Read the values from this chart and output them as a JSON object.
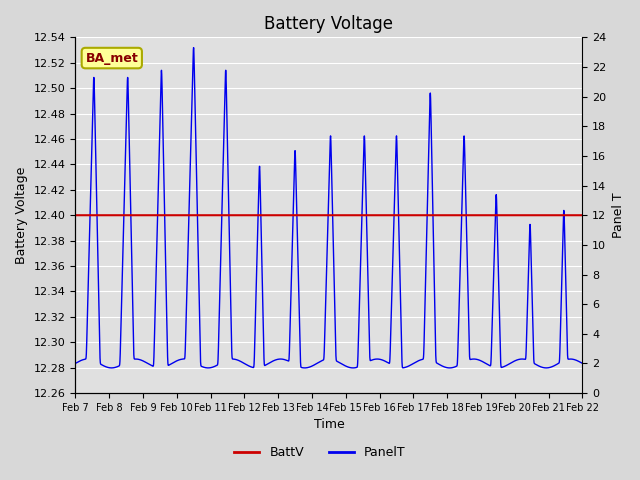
{
  "title": "Battery Voltage",
  "xlabel": "Time",
  "ylabel_left": "Battery Voltage",
  "ylabel_right": "Panel T",
  "ylim_left": [
    12.26,
    12.54
  ],
  "ylim_right": [
    0,
    24
  ],
  "batt_v_value": 12.4,
  "fig_bg_color": "#d8d8d8",
  "plot_bg_color": "#e0e0e0",
  "xtick_labels": [
    "Feb 7",
    "Feb 8",
    "Feb 9",
    "Feb 10",
    "Feb 11",
    "Feb 12",
    "Feb 13",
    "Feb 14",
    "Feb 15",
    "Feb 16",
    "Feb 17",
    "Feb 18",
    "Feb 19",
    "Feb 20",
    "Feb 21",
    "Feb 22"
  ],
  "legend_label_batt": "BattV",
  "legend_label_panel": "PanelT",
  "annotation_text": "BA_met",
  "annotation_bg": "#ffff99",
  "annotation_border": "#aaaa00",
  "line_color_batt": "#cc0000",
  "line_color_panel": "#0000ee",
  "gridline_color": "#ffffff",
  "title_fontsize": 12,
  "axis_fontsize": 9,
  "tick_fontsize": 8
}
